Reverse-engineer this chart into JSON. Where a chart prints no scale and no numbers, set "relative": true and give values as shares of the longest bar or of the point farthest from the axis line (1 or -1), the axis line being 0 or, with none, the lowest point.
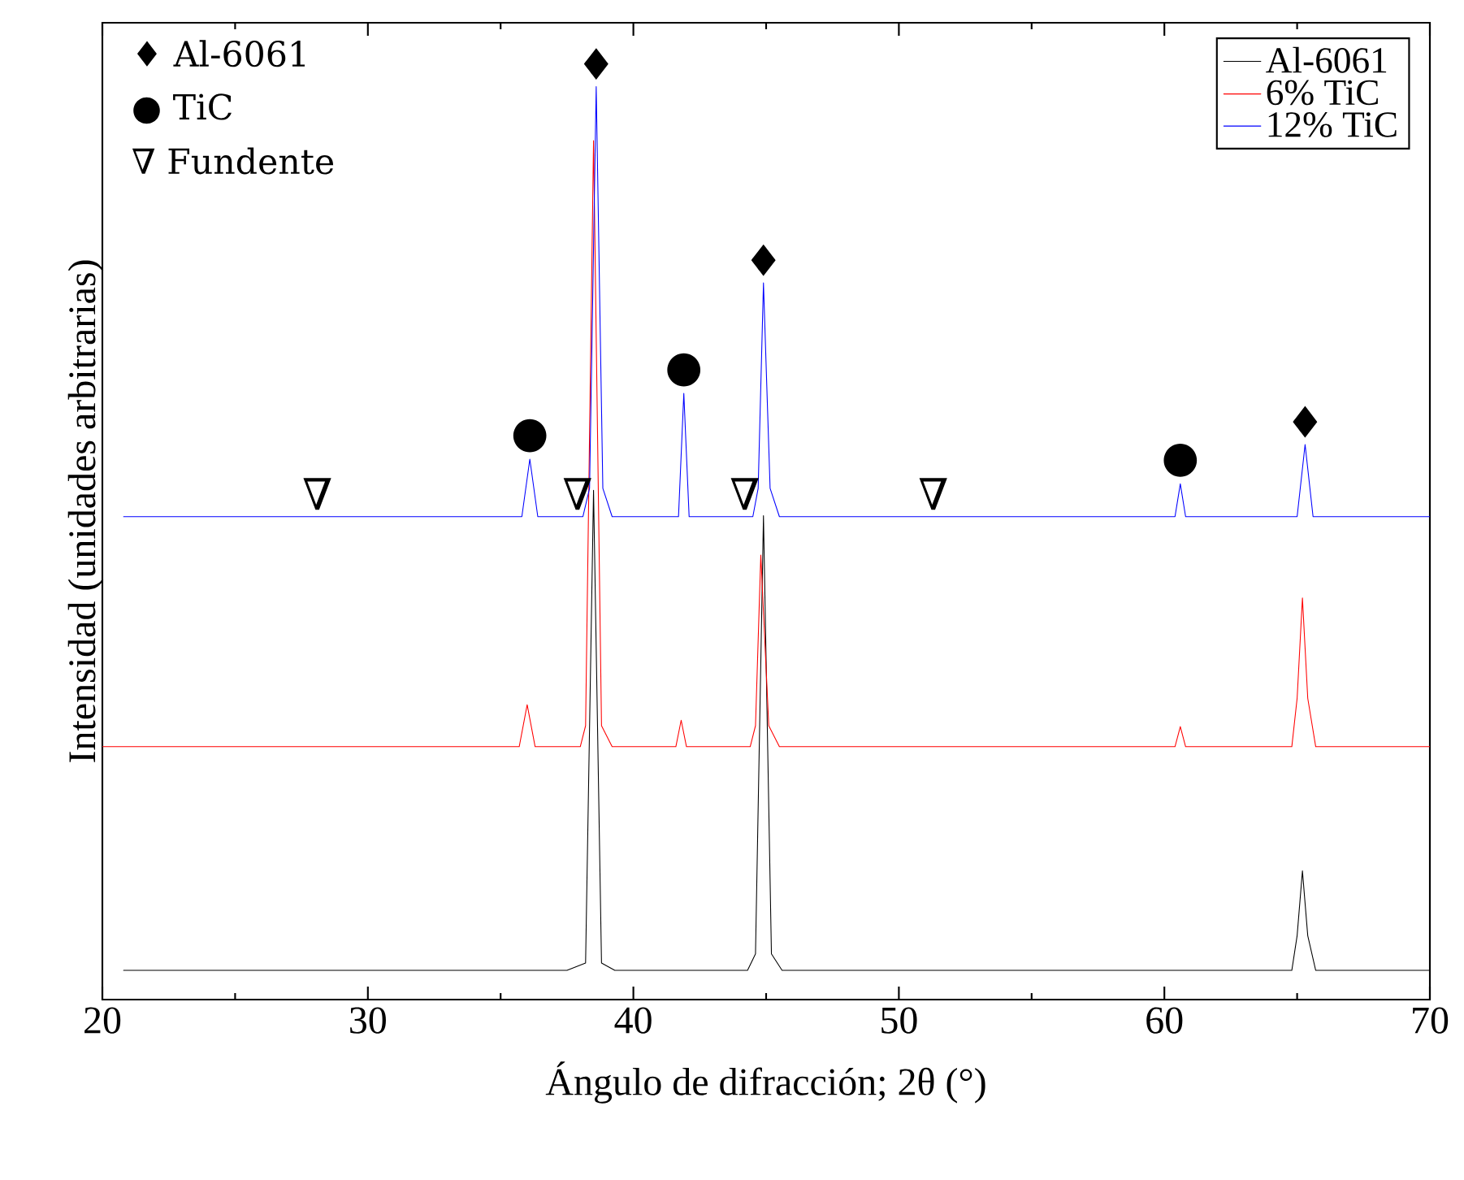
{
  "chart_data": {
    "type": "line",
    "relative": true,
    "xlabel": "Ángulo de difracción; 2θ (°)",
    "ylabel": "Intensidad (unidades arbitrarias)",
    "xlim": [
      20,
      70
    ],
    "xticks": [
      20,
      30,
      40,
      50,
      60,
      70
    ],
    "tick_labels": "x",
    "legend": "top right",
    "grid": false,
    "series": [
      {
        "name": "Al-6061",
        "color": "#000000",
        "x": [
          20.8,
          30,
          37.5,
          38.2,
          38.5,
          38.8,
          39.3,
          44.3,
          44.6,
          44.9,
          45.2,
          45.6,
          64.8,
          65.0,
          65.2,
          65.4,
          65.7,
          70
        ],
        "values": [
          0.032,
          0.032,
          0.032,
          0.04,
          0.558,
          0.04,
          0.032,
          0.032,
          0.05,
          0.53,
          0.05,
          0.032,
          0.032,
          0.07,
          0.141,
          0.07,
          0.032,
          0.032
        ]
      },
      {
        "name": "6% TiC",
        "color": "#ff0000",
        "x": [
          20,
          35.7,
          36.0,
          36.3,
          38.0,
          38.2,
          38.5,
          38.8,
          39.2,
          41.6,
          41.8,
          42.0,
          44.4,
          44.6,
          44.8,
          45.1,
          45.5,
          60.4,
          60.6,
          60.8,
          64.8,
          65.0,
          65.2,
          65.4,
          65.7,
          70
        ],
        "values": [
          0.277,
          0.277,
          0.323,
          0.277,
          0.277,
          0.3,
          0.941,
          0.3,
          0.277,
          0.277,
          0.306,
          0.277,
          0.277,
          0.3,
          0.487,
          0.3,
          0.277,
          0.277,
          0.299,
          0.277,
          0.277,
          0.33,
          0.44,
          0.33,
          0.277,
          0.277
        ]
      },
      {
        "name": "12% TiC",
        "color": "#0000ff",
        "x": [
          20.8,
          35.8,
          36.1,
          36.4,
          38.1,
          38.35,
          38.6,
          38.85,
          39.2,
          41.7,
          41.9,
          42.1,
          44.5,
          44.7,
          44.9,
          45.15,
          45.5,
          60.4,
          60.6,
          60.8,
          65.0,
          65.3,
          65.6,
          70
        ],
        "values": [
          0.529,
          0.529,
          0.592,
          0.529,
          0.529,
          0.56,
          1,
          0.56,
          0.529,
          0.529,
          0.664,
          0.529,
          0.529,
          0.56,
          0.785,
          0.56,
          0.529,
          0.529,
          0.565,
          0.529,
          0.529,
          0.608,
          0.529,
          0.529
        ]
      }
    ],
    "annotations": [
      "♦ Al-6061",
      "● TiC",
      "∇ Fundente",
      {
        "text": "♦",
        "x": 38.6,
        "y": 1
      },
      {
        "text": "♦",
        "x": 44.9,
        "y": 0.785
      },
      {
        "text": "♦",
        "x": 65.3,
        "y": 0.608
      },
      {
        "text": "●",
        "x": 36.1,
        "y": 0.592
      },
      {
        "text": "●",
        "x": 41.9,
        "y": 0.664
      },
      {
        "text": "●",
        "x": 60.6,
        "y": 0.565
      },
      {
        "text": "∇",
        "x": 28.1,
        "y": 0.529
      },
      {
        "text": "∇",
        "x": 37.9,
        "y": 0.529
      },
      {
        "text": "∇",
        "x": 44.2,
        "y": 0.529
      },
      {
        "text": "∇",
        "x": 51.3,
        "y": 0.529
      }
    ]
  }
}
